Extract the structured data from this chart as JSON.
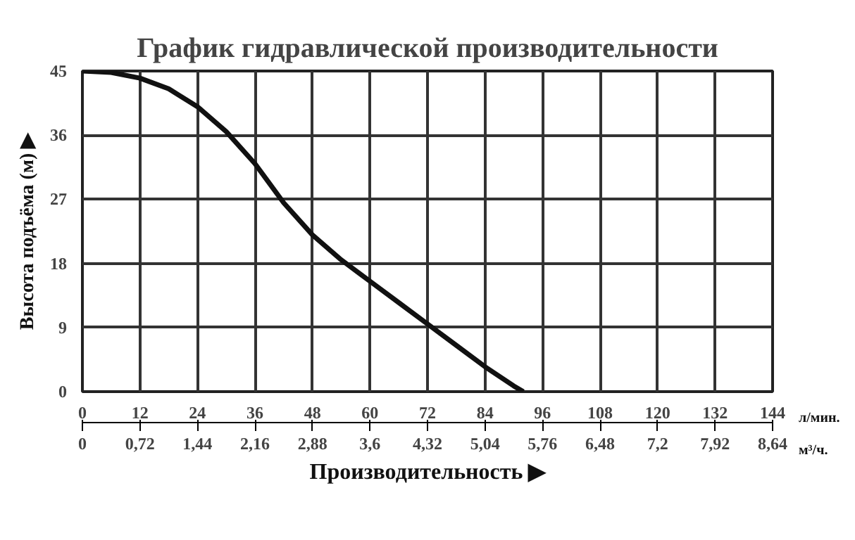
{
  "chart_data": {
    "type": "line",
    "title": "График гидравлической производительности",
    "xlabel": "Производительность ▶",
    "ylabel": "Высота подъёма (м) ▶",
    "x": [
      0,
      6,
      12,
      18,
      24,
      30,
      36,
      42,
      48,
      54,
      60,
      66,
      72,
      78,
      84,
      90,
      92
    ],
    "series": [
      {
        "color": "#111111",
        "values": [
          45,
          44.8,
          44,
          42.5,
          40,
          36.5,
          32,
          26.5,
          22,
          18.5,
          15.5,
          12.5,
          9.5,
          6.5,
          3.5,
          0.8,
          0
        ]
      }
    ],
    "xlim": [
      0,
      144
    ],
    "xticks": [
      0,
      12,
      24,
      36,
      48,
      60,
      72,
      84,
      96,
      108,
      120,
      132,
      144
    ],
    "ylim": [
      0,
      45
    ],
    "yticks": [
      0,
      9,
      18,
      27,
      36,
      45
    ],
    "x2lim": [
      0,
      8.64
    ],
    "x2ticks": [
      0,
      {
        "value": 0.72,
        "label": "0,72"
      },
      {
        "value": 1.44,
        "label": "1,44"
      },
      {
        "value": 2.16,
        "label": "2,16"
      },
      {
        "value": 2.88,
        "label": "2,88"
      },
      {
        "value": 3.6,
        "label": "3,6"
      },
      {
        "value": 4.32,
        "label": "4,32"
      },
      {
        "value": 5.04,
        "label": "5,04"
      },
      {
        "value": 5.76,
        "label": "5,76"
      },
      {
        "value": 6.48,
        "label": "6,48"
      },
      {
        "value": 7.2,
        "label": "7,2"
      },
      {
        "value": 7.92,
        "label": "7,92"
      },
      {
        "value": 8.64,
        "label": "8,64"
      }
    ],
    "annotations": [
      "л/мин.",
      "м³/ч."
    ],
    "grid": true,
    "line_style": "solid",
    "marker": "none"
  }
}
